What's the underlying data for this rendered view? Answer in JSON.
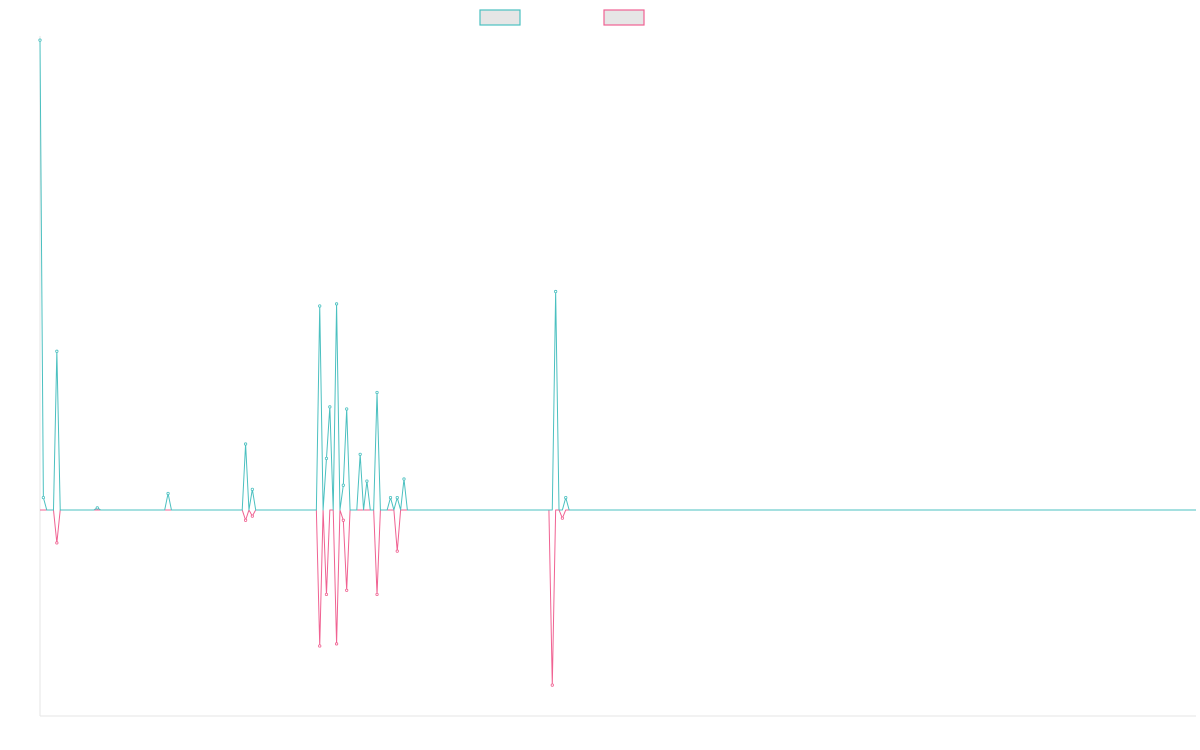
{
  "chart_data": {
    "type": "line",
    "title": "",
    "xlabel": "",
    "ylabel": "",
    "ylim": [
      -100,
      230
    ],
    "legend": {
      "position": "top-center"
    },
    "grid": false,
    "series": [
      {
        "name": "",
        "color": "#4bc0c0",
        "values": [
          228,
          6,
          0,
          0,
          0,
          77,
          0,
          0,
          0,
          0,
          0,
          0,
          0,
          0,
          0,
          0,
          0,
          1,
          0,
          0,
          0,
          0,
          0,
          0,
          0,
          0,
          0,
          0,
          0,
          0,
          0,
          0,
          0,
          0,
          0,
          0,
          0,
          0,
          8,
          0,
          0,
          0,
          0,
          0,
          0,
          0,
          0,
          0,
          0,
          0,
          0,
          0,
          0,
          0,
          0,
          0,
          0,
          0,
          0,
          0,
          0,
          32,
          0,
          10,
          0,
          0,
          0,
          0,
          0,
          0,
          0,
          0,
          0,
          0,
          0,
          0,
          0,
          0,
          0,
          0,
          0,
          0,
          0,
          99,
          0,
          25,
          50,
          0,
          100,
          0,
          12,
          49,
          0,
          0,
          0,
          27,
          0,
          14,
          0,
          0,
          57,
          0,
          0,
          0,
          6,
          0,
          6,
          0,
          15,
          0,
          0,
          0,
          0,
          0,
          0,
          0,
          0,
          0,
          0,
          0,
          0,
          0,
          0,
          0,
          0,
          0,
          0,
          0,
          0,
          0,
          0,
          0,
          0,
          0,
          0,
          0,
          0,
          0,
          0,
          0,
          0,
          0,
          0,
          0,
          0,
          0,
          0,
          0,
          0,
          0,
          0,
          0,
          0,
          106,
          0,
          0,
          6,
          0,
          0,
          0,
          0,
          0,
          0,
          0,
          0,
          0,
          0,
          0,
          0,
          0,
          0,
          0,
          0,
          0,
          0,
          0,
          0,
          0,
          0,
          0,
          0,
          0,
          0,
          0,
          0,
          0,
          0,
          0,
          0,
          0,
          0,
          0,
          0,
          0,
          0,
          0,
          0,
          0,
          0,
          0,
          0,
          0,
          0,
          0,
          0,
          0,
          0,
          0,
          0,
          0,
          0,
          0,
          0,
          0,
          0,
          0,
          0,
          0,
          0,
          0,
          0,
          0,
          0,
          0,
          0,
          0,
          0,
          0,
          0,
          0,
          0,
          0,
          0,
          0,
          0,
          0,
          0,
          0,
          0,
          0,
          0,
          0,
          0,
          0,
          0,
          0,
          0,
          0,
          0,
          0,
          0,
          0,
          0,
          0,
          0,
          0,
          0,
          0,
          0,
          0,
          0,
          0,
          0,
          0,
          0,
          0,
          0,
          0,
          0,
          0,
          0,
          0,
          0,
          0,
          0,
          0,
          0,
          0,
          0,
          0,
          0,
          0,
          0,
          0,
          0,
          0,
          0,
          0,
          0,
          0,
          0,
          0,
          0,
          0,
          0,
          0,
          0,
          0,
          0,
          0,
          0,
          0,
          0,
          0,
          0,
          0,
          0,
          0,
          0,
          0,
          0,
          0,
          0,
          0,
          0,
          0,
          0,
          0,
          0,
          0,
          0,
          0,
          0,
          0,
          0,
          0,
          0,
          0,
          0,
          0,
          0,
          0,
          0,
          0,
          0,
          0,
          0,
          0,
          0,
          0,
          0,
          0,
          0,
          0
        ]
      },
      {
        "name": "",
        "color": "#f06292",
        "values": [
          0,
          0,
          0,
          0,
          0,
          -16,
          0,
          0,
          0,
          0,
          0,
          0,
          0,
          0,
          0,
          0,
          0,
          0,
          0,
          0,
          0,
          0,
          0,
          0,
          0,
          0,
          0,
          0,
          0,
          0,
          0,
          0,
          0,
          0,
          0,
          0,
          0,
          0,
          0,
          0,
          0,
          0,
          0,
          0,
          0,
          0,
          0,
          0,
          0,
          0,
          0,
          0,
          0,
          0,
          0,
          0,
          0,
          0,
          0,
          0,
          0,
          -5,
          0,
          -3,
          0,
          0,
          0,
          0,
          0,
          0,
          0,
          0,
          0,
          0,
          0,
          0,
          0,
          0,
          0,
          0,
          0,
          0,
          0,
          -66,
          0,
          -41,
          0,
          0,
          -65,
          0,
          -5,
          -39,
          0,
          0,
          0,
          0,
          0,
          0,
          0,
          0,
          -41,
          0,
          0,
          0,
          0,
          0,
          -20,
          0,
          0,
          0,
          0,
          0,
          0,
          0,
          0,
          0,
          0,
          0,
          0,
          0,
          0,
          0,
          0,
          0,
          0,
          0,
          0,
          0,
          0,
          0,
          0,
          0,
          0,
          0,
          0,
          0,
          0,
          0,
          0,
          0,
          0,
          0,
          0,
          0,
          0,
          0,
          0,
          0,
          0,
          0,
          0,
          0,
          -85,
          0,
          0,
          -4,
          0,
          0,
          0,
          0,
          0,
          0,
          0,
          0,
          0,
          0,
          0,
          0,
          0,
          0,
          0,
          0,
          0,
          0,
          0,
          0,
          0,
          0,
          0,
          0,
          0,
          0,
          0,
          0,
          0,
          0,
          0,
          0,
          0,
          0,
          0,
          0,
          0,
          0,
          0,
          0,
          0,
          0,
          0,
          0,
          0,
          0,
          0,
          0,
          0,
          0,
          0,
          0,
          0,
          0,
          0,
          0,
          0,
          0,
          0,
          0,
          0,
          0,
          0,
          0,
          0,
          0,
          0,
          0,
          0,
          0,
          0,
          0,
          0,
          0,
          0,
          0,
          0,
          0,
          0,
          0,
          0,
          0,
          0,
          0,
          0,
          0,
          0,
          0,
          0,
          0,
          0,
          0,
          0,
          0,
          0,
          0,
          0,
          0,
          0,
          0,
          0,
          0,
          0,
          0,
          0,
          0,
          0,
          0,
          0,
          0,
          0,
          0,
          0,
          0,
          0,
          0,
          0,
          0,
          0,
          0,
          0,
          0,
          0,
          0,
          0,
          0,
          0,
          0,
          0,
          0,
          0,
          0,
          0,
          0,
          0,
          0,
          0,
          0,
          0,
          0,
          0,
          0,
          0,
          0,
          0,
          0,
          0,
          0,
          0,
          0,
          0,
          0,
          0,
          0,
          0,
          0,
          0,
          0,
          0,
          0,
          0,
          0,
          0,
          0,
          0,
          0,
          0,
          0,
          0,
          0,
          0,
          0,
          0,
          0,
          0,
          0,
          0,
          0,
          0,
          0,
          0,
          0,
          0,
          0,
          0,
          0,
          0
        ]
      }
    ]
  }
}
